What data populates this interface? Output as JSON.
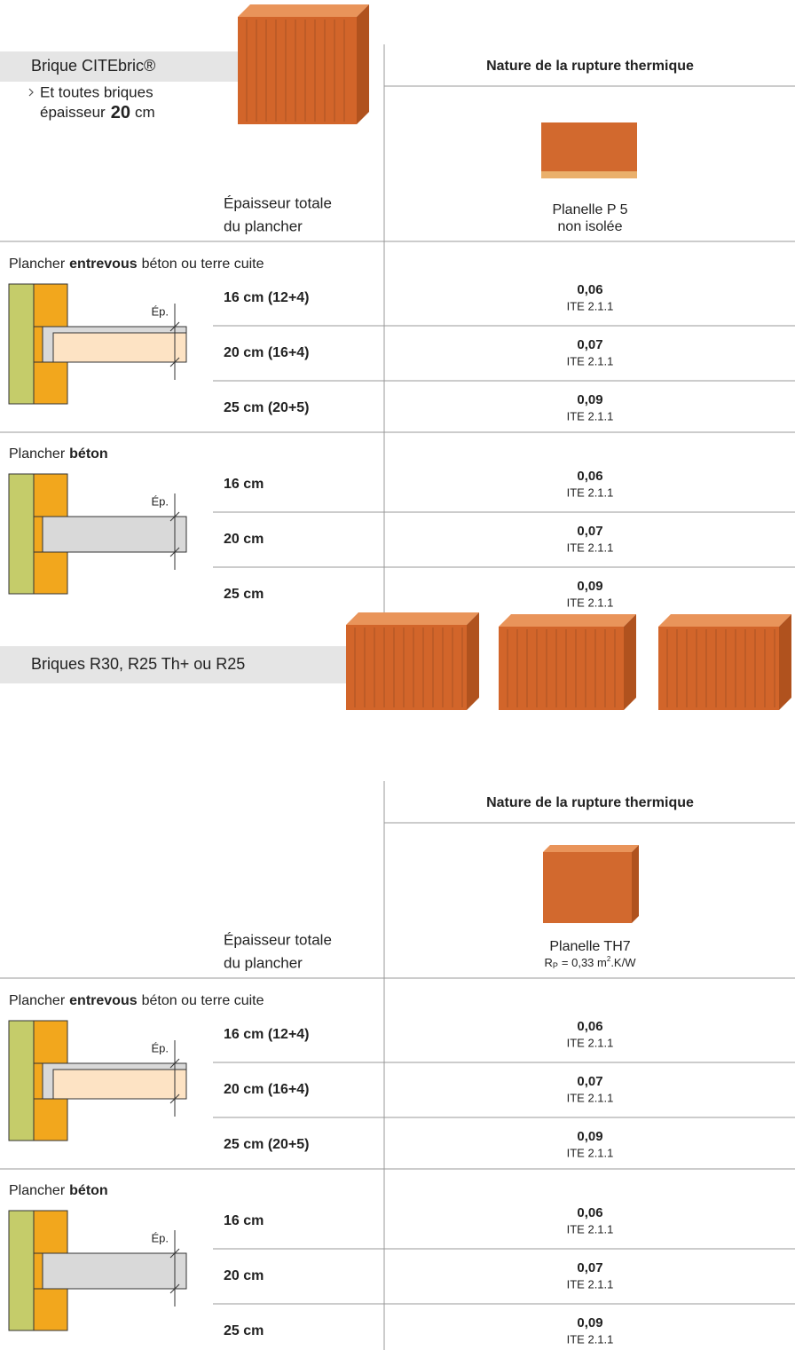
{
  "sections": [
    {
      "title": "Brique CITEbric®",
      "note": [
        "Et toutes briques",
        "épaisseur",
        "20",
        "cm"
      ],
      "column_header": "Nature de la rupture thermique",
      "product": {
        "name": "Planelle P 5",
        "detail": "non isolée"
      },
      "thickness_header": [
        "Épaisseur totale",
        "du plancher"
      ],
      "groups": [
        {
          "label": [
            "Plancher",
            "entrevous",
            "béton ou terre cuite"
          ],
          "dimension": "Ép.",
          "rows": [
            {
              "thickness": "16 cm (12+4)",
              "value": "0,06",
              "reference": "ITE 2.1.1"
            },
            {
              "thickness": "20 cm (16+4)",
              "value": "0,07",
              "reference": "ITE 2.1.1"
            },
            {
              "thickness": "25 cm (20+5)",
              "value": "0,09",
              "reference": "ITE 2.1.1"
            }
          ]
        },
        {
          "label": [
            "Plancher",
            "béton"
          ],
          "dimension": "Ép.",
          "rows": [
            {
              "thickness": "16 cm",
              "value": "0,06",
              "reference": "ITE 2.1.1"
            },
            {
              "thickness": "20 cm",
              "value": "0,07",
              "reference": "ITE 2.1.1"
            },
            {
              "thickness": "25 cm",
              "value": "0,09",
              "reference": "ITE 2.1.1"
            }
          ]
        }
      ]
    },
    {
      "title": "Briques R30, R25 Th+ ou R25",
      "column_header": "Nature de la rupture thermique",
      "product": {
        "name": "Planelle TH7",
        "detail": {
          "symbol": "R",
          "subscript": "P",
          "equals": "= 0,33 m",
          "superscript": "2",
          "unit": ".K/W"
        }
      },
      "thickness_header": [
        "Épaisseur totale",
        "du plancher"
      ],
      "groups": [
        {
          "label": [
            "Plancher",
            "entrevous",
            "béton ou terre cuite"
          ],
          "dimension": "Ép.",
          "rows": [
            {
              "thickness": "16 cm (12+4)",
              "value": "0,06",
              "reference": "ITE 2.1.1"
            },
            {
              "thickness": "20 cm (16+4)",
              "value": "0,07",
              "reference": "ITE 2.1.1"
            },
            {
              "thickness": "25 cm (20+5)",
              "value": "0,09",
              "reference": "ITE 2.1.1"
            }
          ]
        },
        {
          "label": [
            "Plancher",
            "béton"
          ],
          "dimension": "Ép.",
          "rows": [
            {
              "thickness": "16 cm",
              "value": "0,06",
              "reference": "ITE 2.1.1"
            },
            {
              "thickness": "20 cm",
              "value": "0,07",
              "reference": "ITE 2.1.1"
            },
            {
              "thickness": "25 cm",
              "value": "0,09",
              "reference": "ITE 2.1.1"
            }
          ]
        }
      ]
    }
  ]
}
